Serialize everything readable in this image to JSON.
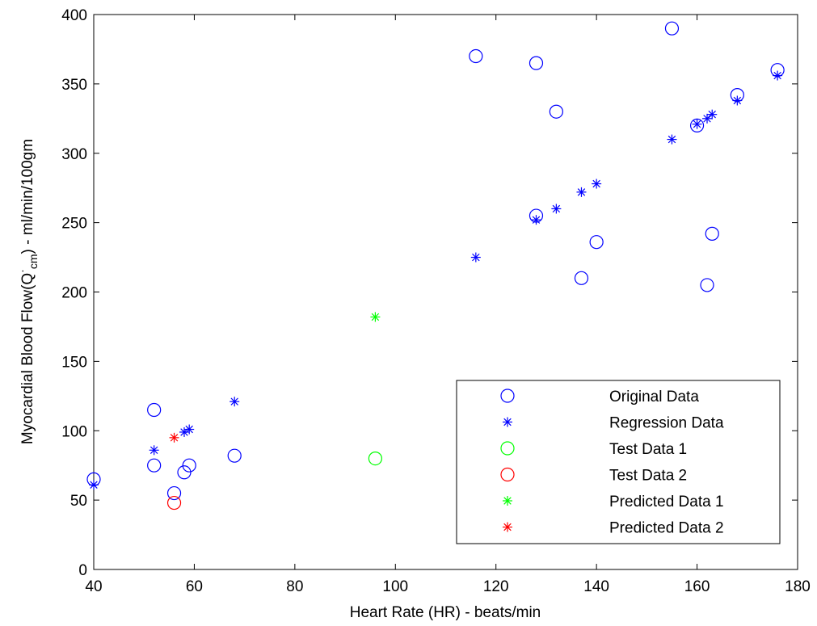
{
  "chart_data": {
    "type": "scatter",
    "xlabel": "Heart Rate (HR) - beats/min",
    "ylabel_main": "Myocardial Blood Flow(Q",
    "ylabel_dot": "·",
    "ylabel_sub": "cm",
    "ylabel_rest": ") - ml/min/100gm",
    "xlim": [
      40,
      180
    ],
    "ylim": [
      0,
      400
    ],
    "xticks": [
      40,
      60,
      80,
      100,
      120,
      140,
      160,
      180
    ],
    "yticks": [
      0,
      50,
      100,
      150,
      200,
      250,
      300,
      350,
      400
    ],
    "grid": false,
    "legend_position": "bottom-right",
    "series": [
      {
        "name": "Original Data",
        "marker": "circle",
        "color": "#0000ff",
        "points": [
          [
            40,
            65
          ],
          [
            52,
            115
          ],
          [
            52,
            75
          ],
          [
            56,
            55
          ],
          [
            58,
            70
          ],
          [
            59,
            75
          ],
          [
            68,
            82
          ],
          [
            116,
            370
          ],
          [
            128,
            365
          ],
          [
            128,
            255
          ],
          [
            132,
            330
          ],
          [
            137,
            210
          ],
          [
            140,
            236
          ],
          [
            155,
            390
          ],
          [
            160,
            320
          ],
          [
            162,
            205
          ],
          [
            163,
            242
          ],
          [
            168,
            342
          ],
          [
            176,
            360
          ]
        ]
      },
      {
        "name": "Regression Data",
        "marker": "asterisk",
        "color": "#0000ff",
        "points": [
          [
            40,
            61
          ],
          [
            52,
            86
          ],
          [
            58,
            99
          ],
          [
            59,
            101
          ],
          [
            68,
            121
          ],
          [
            116,
            225
          ],
          [
            128,
            252
          ],
          [
            132,
            260
          ],
          [
            137,
            272
          ],
          [
            140,
            278
          ],
          [
            155,
            310
          ],
          [
            160,
            321
          ],
          [
            162,
            325
          ],
          [
            163,
            328
          ],
          [
            168,
            338
          ],
          [
            176,
            356
          ]
        ]
      },
      {
        "name": "Test Data 1",
        "marker": "circle",
        "color": "#00ff00",
        "points": [
          [
            96,
            80
          ]
        ]
      },
      {
        "name": "Test Data 2",
        "marker": "circle",
        "color": "#ff0000",
        "points": [
          [
            56,
            48
          ]
        ]
      },
      {
        "name": "Predicted Data 1",
        "marker": "asterisk",
        "color": "#00ff00",
        "points": [
          [
            96,
            182
          ]
        ]
      },
      {
        "name": "Predicted Data 2",
        "marker": "asterisk",
        "color": "#ff0000",
        "points": [
          [
            56,
            95
          ]
        ]
      }
    ]
  }
}
